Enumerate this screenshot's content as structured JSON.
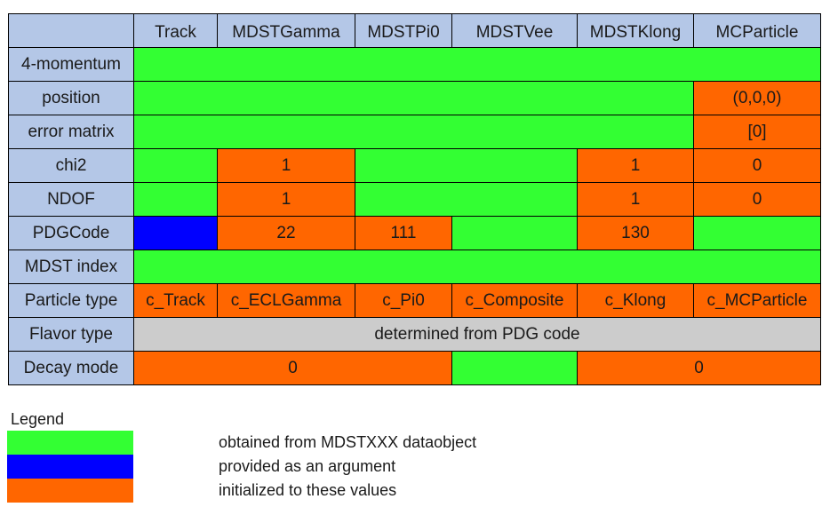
{
  "columns": [
    "",
    "Track",
    "MDSTGamma",
    "MDSTPi0",
    "MDSTVee",
    "MDSTKlong",
    "MCParticle"
  ],
  "rows": {
    "momentum": {
      "label": "4-momentum"
    },
    "position": {
      "label": "position",
      "mc_value": "(0,0,0)"
    },
    "error_matrix": {
      "label": "error matrix",
      "mc_value": "[0]"
    },
    "chi2": {
      "label": "chi2",
      "gamma_value": "1",
      "klong_value": "1",
      "mc_value": "0"
    },
    "ndof": {
      "label": "NDOF",
      "gamma_value": "1",
      "klong_value": "1",
      "mc_value": "0"
    },
    "pdgcode": {
      "label": "PDGCode",
      "gamma_value": "22",
      "pi0_value": "111",
      "klong_value": "130"
    },
    "mdst_index": {
      "label": "MDST index"
    },
    "particle_type": {
      "label": "Particle type",
      "values": [
        "c_Track",
        "c_ECLGamma",
        "c_Pi0",
        "c_Composite",
        "c_Klong",
        "c_MCParticle"
      ]
    },
    "flavor_type": {
      "label": "Flavor type",
      "value": "determined from PDG code"
    },
    "decay_mode": {
      "label": "Decay mode",
      "left_value": "0",
      "right_value": "0"
    }
  },
  "legend": {
    "title": "Legend",
    "items": [
      {
        "color": "#33ff33",
        "text": "obtained from MDSTXXX dataobject"
      },
      {
        "color": "#0000ff",
        "text": "provided as an argument"
      },
      {
        "color": "#ff6600",
        "text": "initialized to these values"
      }
    ]
  },
  "colors": {
    "header": "#b4c7e7",
    "green": "#33ff33",
    "blue": "#0000ff",
    "orange": "#ff6600",
    "gray": "#cccccc"
  }
}
